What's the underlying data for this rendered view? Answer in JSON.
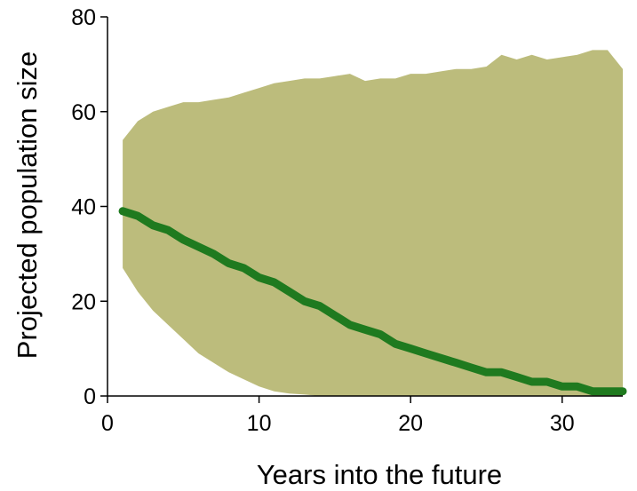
{
  "chart_data": {
    "type": "area",
    "xlabel": "Years into the future",
    "ylabel": "Projected population size",
    "xlim": [
      0,
      34
    ],
    "ylim": [
      0,
      80
    ],
    "xticks": [
      0,
      10,
      20,
      30
    ],
    "yticks": [
      0,
      20,
      40,
      60,
      80
    ],
    "grid": false,
    "legend": "none",
    "colors": {
      "band": "#bcbc7c",
      "line": "#1f7a1f",
      "axis": "#000000"
    },
    "band": {
      "x": [
        1,
        2,
        3,
        4,
        5,
        6,
        7,
        8,
        9,
        10,
        11,
        12,
        13,
        14,
        15,
        16,
        17,
        18,
        19,
        20,
        21,
        22,
        23,
        24,
        25,
        26,
        27,
        28,
        29,
        30,
        31,
        32,
        33,
        34
      ],
      "upper": [
        54,
        58,
        60,
        61,
        62,
        62,
        62.5,
        63,
        64,
        65,
        66,
        66.5,
        67,
        67,
        67.5,
        68,
        66.5,
        67,
        67,
        68,
        68,
        68.5,
        69,
        69,
        69.5,
        72,
        71,
        72,
        71,
        71.5,
        72,
        73,
        73,
        69
      ],
      "lower": [
        27,
        22,
        18,
        15,
        12,
        9,
        7,
        5,
        3.5,
        2,
        1,
        0.5,
        0.3,
        0,
        0,
        0,
        0,
        0,
        0,
        0,
        0,
        0,
        0,
        0,
        0,
        0,
        0,
        0,
        0,
        0,
        0,
        0,
        0,
        0
      ]
    },
    "series": [
      {
        "x": [
          1,
          2,
          3,
          4,
          5,
          6,
          7,
          8,
          9,
          10,
          11,
          12,
          13,
          14,
          15,
          16,
          17,
          18,
          19,
          20,
          21,
          22,
          23,
          24,
          25,
          26,
          27,
          28,
          29,
          30,
          31,
          32,
          33,
          34
        ],
        "values": [
          39,
          38,
          36,
          35,
          33,
          31.5,
          30,
          28,
          27,
          25,
          24,
          22,
          20,
          19,
          17,
          15,
          14,
          13,
          11,
          10,
          9,
          8,
          7,
          6,
          5,
          5,
          4,
          3,
          3,
          2,
          2,
          1,
          1,
          1
        ]
      }
    ]
  }
}
